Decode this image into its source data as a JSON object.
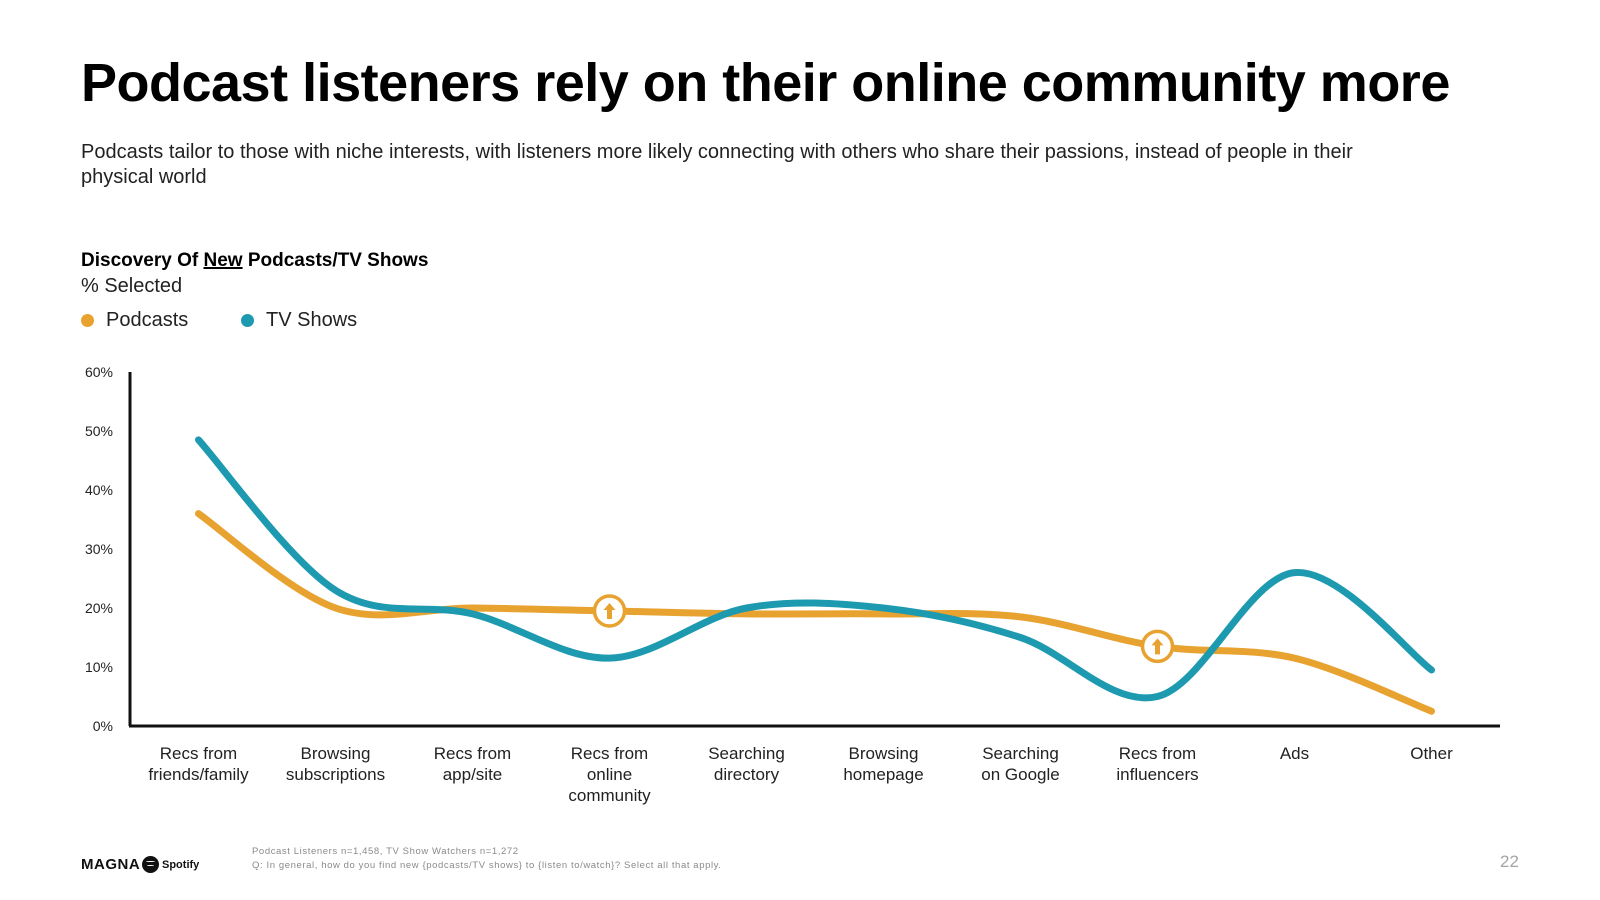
{
  "title": "Podcast listeners rely on their online community more",
  "subtitle": "Podcasts tailor to those with niche interests, with listeners more likely connecting with others who share their passions, instead of people in their physical world",
  "chart_heading": {
    "prefix": "Discovery Of ",
    "emphasis": "New",
    "suffix": " Podcasts/TV Shows",
    "unit": "% Selected"
  },
  "colors": {
    "podcasts": "#e8a230",
    "tv_shows": "#1e9ab0",
    "axis": "#111111"
  },
  "chart_data": {
    "type": "line",
    "title": "Discovery Of New Podcasts/TV Shows",
    "ylabel": "% Selected",
    "xlabel": "",
    "ylim": [
      0,
      60
    ],
    "y_ticks": [
      "0%",
      "10%",
      "20%",
      "30%",
      "40%",
      "50%",
      "60%"
    ],
    "grid": false,
    "legend_position": "top-left",
    "categories": [
      [
        "Recs from",
        "friends/family"
      ],
      [
        "Browsing",
        "subscriptions"
      ],
      [
        "Recs from",
        "app/site"
      ],
      [
        "Recs from",
        "online",
        "community"
      ],
      [
        "Searching",
        "directory"
      ],
      [
        "Browsing",
        "homepage"
      ],
      [
        "Searching",
        "on Google"
      ],
      [
        "Recs from",
        "influencers"
      ],
      [
        "Ads"
      ],
      [
        "Other"
      ]
    ],
    "series": [
      {
        "name": "Podcasts",
        "values": [
          36,
          20,
          20,
          19.5,
          19,
          19,
          18.5,
          13.5,
          11.5,
          2.5
        ]
      },
      {
        "name": "TV Shows",
        "values": [
          48.5,
          23,
          19,
          11.5,
          20,
          20,
          15,
          5,
          26,
          9.5
        ]
      }
    ],
    "annotations": [
      {
        "type": "up-arrow-badge",
        "series": "Podcasts",
        "category_index": 3
      },
      {
        "type": "up-arrow-badge",
        "series": "Podcasts",
        "category_index": 7
      }
    ]
  },
  "footer": {
    "logo_magna": "MAGNA",
    "logo_spotify": "Spotify",
    "note_line1": "Podcast Listeners n=1,458, TV Show Watchers n=1,272",
    "note_line2": "Q: In general, how do you find new {podcasts/TV shows} to {listen to/watch}? Select all that apply.",
    "page_number": "22"
  }
}
